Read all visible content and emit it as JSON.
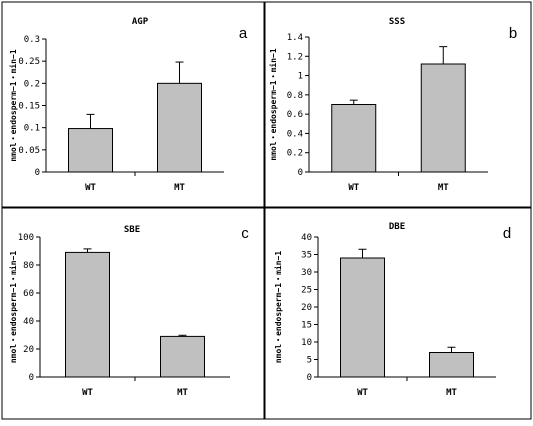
{
  "chart_data": [
    {
      "type": "bar",
      "panel_letter": "a",
      "title": "AGP",
      "ylabel": "nmol・endosperm−1・min−1",
      "categories": [
        "WT",
        "MT"
      ],
      "values": [
        0.098,
        0.2
      ],
      "errors": [
        0.032,
        0.048
      ],
      "ylim": [
        0,
        0.3
      ],
      "yticks": [
        0,
        0.05,
        0.1,
        0.15,
        0.2,
        0.25,
        0.3
      ],
      "ytick_labels": [
        "0",
        "0.05",
        "0.1",
        "0.15",
        "0.2",
        "0.25",
        "0.3"
      ],
      "grid": false,
      "bar_color": "#c0c0c0"
    },
    {
      "type": "bar",
      "panel_letter": "b",
      "title": "SSS",
      "ylabel": "nmol・endosperm−1・min−1",
      "categories": [
        "WT",
        "MT"
      ],
      "values": [
        0.7,
        1.12
      ],
      "errors": [
        0.045,
        0.18
      ],
      "ylim": [
        0,
        1.4
      ],
      "yticks": [
        0,
        0.2,
        0.4,
        0.6,
        0.8,
        1.0,
        1.2,
        1.4
      ],
      "ytick_labels": [
        "0",
        "0.2",
        "0.4",
        "0.6",
        "0.8",
        "1",
        "1.2",
        "1.4"
      ],
      "grid": false,
      "bar_color": "#c0c0c0"
    },
    {
      "type": "bar",
      "panel_letter": "c",
      "title": "SBE",
      "ylabel": "nmol・endosperm−1・min−1",
      "categories": [
        "WT",
        "MT"
      ],
      "values": [
        89,
        29
      ],
      "errors": [
        2.5,
        0.8
      ],
      "ylim": [
        0,
        100
      ],
      "yticks": [
        0,
        20,
        40,
        60,
        80,
        100
      ],
      "ytick_labels": [
        "0",
        "20",
        "40",
        "60",
        "80",
        "100"
      ],
      "grid": false,
      "bar_color": "#c0c0c0"
    },
    {
      "type": "bar",
      "panel_letter": "d",
      "title": "DBE",
      "ylabel": "nmol・endosperm−1・min−1",
      "categories": [
        "WT",
        "MT"
      ],
      "values": [
        34,
        7
      ],
      "errors": [
        2.5,
        1.5
      ],
      "ylim": [
        0,
        40
      ],
      "yticks": [
        0,
        5,
        10,
        15,
        20,
        25,
        30,
        35,
        40
      ],
      "ytick_labels": [
        "0",
        "5",
        "10",
        "15",
        "20",
        "25",
        "30",
        "35",
        "40"
      ],
      "grid": false,
      "bar_color": "#c0c0c0"
    }
  ]
}
